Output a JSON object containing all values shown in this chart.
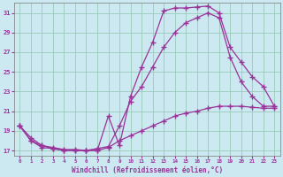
{
  "xlabel": "Windchill (Refroidissement éolien,°C)",
  "bg_color": "#cce8f0",
  "grid_color": "#99ccbb",
  "line_color": "#993399",
  "xlim": [
    -0.5,
    23.5
  ],
  "ylim": [
    16.5,
    32.0
  ],
  "yticks": [
    17,
    19,
    21,
    23,
    25,
    27,
    29,
    31
  ],
  "xticks": [
    0,
    1,
    2,
    3,
    4,
    5,
    6,
    7,
    8,
    9,
    10,
    11,
    12,
    13,
    14,
    15,
    16,
    17,
    18,
    19,
    20,
    21,
    22,
    23
  ],
  "line1_x": [
    0,
    1,
    2,
    3,
    4,
    5,
    6,
    7,
    8,
    9,
    10,
    11,
    12,
    13,
    14,
    15,
    16,
    17,
    18,
    19,
    20,
    21,
    22,
    23
  ],
  "line1_y": [
    19.5,
    18.0,
    17.5,
    17.2,
    17.0,
    17.0,
    17.0,
    17.0,
    20.5,
    17.5,
    22.5,
    25.5,
    28.0,
    31.2,
    31.5,
    31.5,
    31.6,
    31.7,
    31.0,
    27.5,
    26.0,
    24.5,
    23.5,
    21.5
  ],
  "line2_x": [
    0,
    1,
    2,
    3,
    4,
    5,
    6,
    7,
    8,
    9,
    10,
    11,
    12,
    13,
    14,
    15,
    16,
    17,
    18,
    19,
    20,
    21,
    22,
    23
  ],
  "line2_y": [
    19.5,
    18.0,
    17.3,
    17.2,
    17.0,
    17.0,
    17.0,
    17.2,
    17.4,
    19.5,
    22.0,
    23.5,
    25.5,
    27.5,
    29.0,
    30.0,
    30.5,
    31.0,
    30.5,
    26.5,
    24.0,
    22.5,
    21.5,
    21.5
  ],
  "line3_x": [
    0,
    1,
    2,
    3,
    4,
    5,
    6,
    7,
    8,
    9,
    10,
    11,
    12,
    13,
    14,
    15,
    16,
    17,
    18,
    19,
    20,
    21,
    22,
    23
  ],
  "line3_y": [
    19.5,
    18.3,
    17.5,
    17.3,
    17.1,
    17.1,
    17.0,
    17.0,
    17.3,
    18.0,
    18.5,
    19.0,
    19.5,
    20.0,
    20.5,
    20.8,
    21.0,
    21.3,
    21.5,
    21.5,
    21.5,
    21.4,
    21.3,
    21.3
  ]
}
